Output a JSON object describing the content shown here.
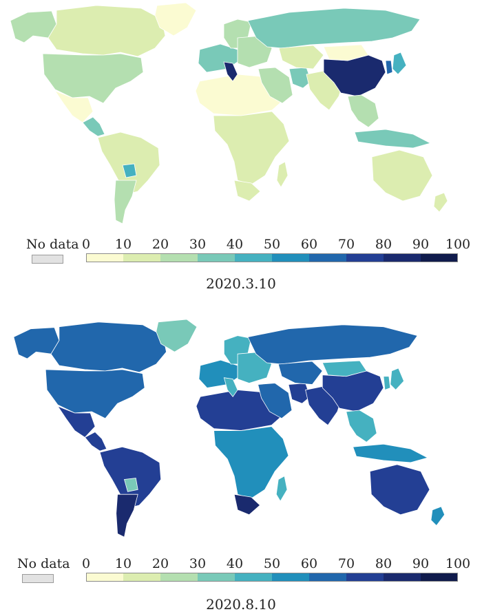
{
  "panels": [
    {
      "date": "2020.3.10",
      "legend": {
        "no_data_label": "No data",
        "no_data_color": "#e2e2e2",
        "ticks": [
          "0",
          "10",
          "20",
          "30",
          "40",
          "50",
          "60",
          "70",
          "80",
          "90",
          "100"
        ],
        "colors": [
          "#fbfbd2",
          "#dcedb0",
          "#b4dfb0",
          "#79c9b8",
          "#45b1c0",
          "#218fbb",
          "#2167ac",
          "#233f94",
          "#1a2a6e",
          "#101b4c"
        ]
      },
      "regions": [
        {
          "name": "canada",
          "bin": 1
        },
        {
          "name": "alaska",
          "bin": 2
        },
        {
          "name": "greenland",
          "bin": 0
        },
        {
          "name": "usa",
          "bin": 2
        },
        {
          "name": "mexico",
          "bin": 0
        },
        {
          "name": "central-america",
          "bin": 3
        },
        {
          "name": "south-america",
          "bin": 1
        },
        {
          "name": "paraguay",
          "bin": 4
        },
        {
          "name": "argentina",
          "bin": 2
        },
        {
          "name": "north-africa",
          "bin": 0
        },
        {
          "name": "sub-saharan-africa",
          "bin": 1
        },
        {
          "name": "south-africa",
          "bin": 1
        },
        {
          "name": "madagascar",
          "bin": 1
        },
        {
          "name": "western-europe",
          "bin": 3
        },
        {
          "name": "italy",
          "bin": 8
        },
        {
          "name": "scandinavia",
          "bin": 2
        },
        {
          "name": "eastern-europe",
          "bin": 2
        },
        {
          "name": "russia",
          "bin": 3
        },
        {
          "name": "middle-east",
          "bin": 2
        },
        {
          "name": "iran",
          "bin": 3
        },
        {
          "name": "central-asia",
          "bin": 1
        },
        {
          "name": "south-asia",
          "bin": 1
        },
        {
          "name": "china",
          "bin": 8
        },
        {
          "name": "mongolia",
          "bin": 0
        },
        {
          "name": "korea",
          "bin": 6
        },
        {
          "name": "japan",
          "bin": 4
        },
        {
          "name": "southeast-asia",
          "bin": 2
        },
        {
          "name": "indonesia",
          "bin": 3
        },
        {
          "name": "australia",
          "bin": 1
        },
        {
          "name": "new-zealand",
          "bin": 1
        }
      ]
    },
    {
      "date": "2020.8.10",
      "legend": {
        "no_data_label": "No data",
        "no_data_color": "#e2e2e2",
        "ticks": [
          "0",
          "10",
          "20",
          "30",
          "40",
          "50",
          "60",
          "70",
          "80",
          "90",
          "100"
        ],
        "colors": [
          "#fbfbd2",
          "#dcedb0",
          "#b4dfb0",
          "#79c9b8",
          "#45b1c0",
          "#218fbb",
          "#2167ac",
          "#233f94",
          "#1a2a6e",
          "#101b4c"
        ]
      },
      "regions": [
        {
          "name": "canada",
          "bin": 6
        },
        {
          "name": "alaska",
          "bin": 6
        },
        {
          "name": "greenland",
          "bin": 3
        },
        {
          "name": "usa",
          "bin": 6
        },
        {
          "name": "mexico",
          "bin": 7
        },
        {
          "name": "central-america",
          "bin": 7
        },
        {
          "name": "south-america",
          "bin": 7
        },
        {
          "name": "paraguay",
          "bin": 3
        },
        {
          "name": "argentina",
          "bin": 8
        },
        {
          "name": "north-africa",
          "bin": 7
        },
        {
          "name": "sub-saharan-africa",
          "bin": 5
        },
        {
          "name": "south-africa",
          "bin": 8
        },
        {
          "name": "madagascar",
          "bin": 4
        },
        {
          "name": "western-europe",
          "bin": 5
        },
        {
          "name": "italy",
          "bin": 4
        },
        {
          "name": "scandinavia",
          "bin": 4
        },
        {
          "name": "eastern-europe",
          "bin": 4
        },
        {
          "name": "russia",
          "bin": 6
        },
        {
          "name": "middle-east",
          "bin": 6
        },
        {
          "name": "iran",
          "bin": 7
        },
        {
          "name": "central-asia",
          "bin": 6
        },
        {
          "name": "south-asia",
          "bin": 7
        },
        {
          "name": "china",
          "bin": 7
        },
        {
          "name": "mongolia",
          "bin": 4
        },
        {
          "name": "korea",
          "bin": 4
        },
        {
          "name": "japan",
          "bin": 4
        },
        {
          "name": "southeast-asia",
          "bin": 4
        },
        {
          "name": "indonesia",
          "bin": 5
        },
        {
          "name": "australia",
          "bin": 7
        },
        {
          "name": "new-zealand",
          "bin": 5
        }
      ]
    }
  ]
}
